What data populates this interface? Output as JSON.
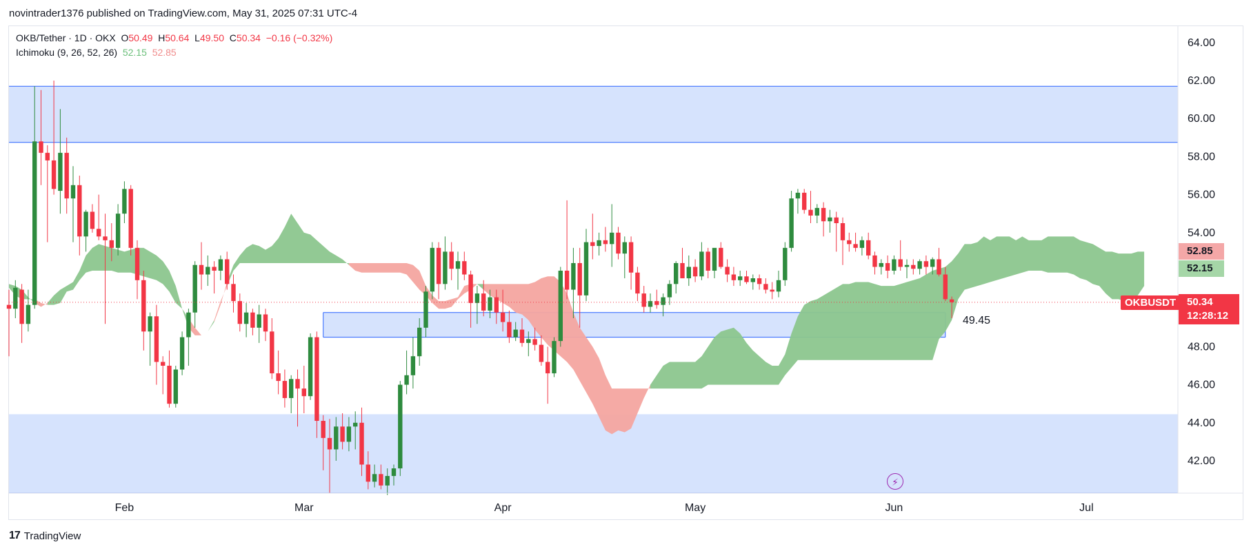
{
  "publisher_line": "novintrader1376 published on TradingView.com, May 31, 2025 07:31 UTC-4",
  "legend": {
    "symbol": "OKB/Tether · 1D · OKX",
    "open_label": "O",
    "open": "50.49",
    "high_label": "H",
    "high": "50.64",
    "low_label": "L",
    "low": "49.50",
    "close_label": "C",
    "close": "50.34",
    "change": "−0.16 (−0.32%)",
    "indicator": "Ichimoku (9, 26, 52, 26)",
    "ind_val_a": "52.15",
    "ind_val_b": "52.85"
  },
  "badges": {
    "symbol": "OKBUSDT",
    "last_price": "50.34",
    "countdown": "12:28:12",
    "senkou_b": "52.85",
    "senkou_a": "52.15"
  },
  "level_label": "49.45",
  "footer": {
    "logo_mark": "17",
    "brand": "TradingView"
  },
  "colors": {
    "up": "#2e8b3e",
    "down": "#f23645",
    "zone_fill": "#d2e0fd",
    "zone_line": "#2962ff",
    "cloud_bull": "#8cc68e",
    "cloud_bear": "#f4a5a0"
  },
  "chart_data": {
    "type": "candlestick",
    "ylim": [
      40.3,
      65.0
    ],
    "y_ticks": [
      "64.00",
      "62.00",
      "60.00",
      "58.00",
      "56.00",
      "54.00",
      "52.00",
      "50.00",
      "48.00",
      "46.00",
      "44.00",
      "42.00"
    ],
    "x_ticks": [
      {
        "label": "Feb",
        "day": 18
      },
      {
        "label": "Mar",
        "day": 46
      },
      {
        "label": "Apr",
        "day": 77
      },
      {
        "label": "May",
        "day": 107
      },
      {
        "label": "Jun",
        "day": 138
      },
      {
        "label": "Jul",
        "day": 168
      }
    ],
    "zones": [
      {
        "name": "upper-supply-zone",
        "y1": 58.75,
        "y2": 61.7,
        "x_start": 0,
        "x_end": null
      },
      {
        "name": "lower-demand-zone",
        "y1": 40.3,
        "y2": 44.45,
        "x_start": 0,
        "x_end": null
      },
      {
        "name": "mid-level-zone",
        "y1": 48.5,
        "y2": 49.8,
        "x_start": 49,
        "x_end": 146
      }
    ],
    "last_price_line": 50.34,
    "candles": [
      [
        50.2,
        51.0,
        47.5,
        50.0
      ],
      [
        50.0,
        51.5,
        49.5,
        51.1
      ],
      [
        51.0,
        51.3,
        48.2,
        49.2
      ],
      [
        49.2,
        51.0,
        48.8,
        50.2
      ],
      [
        50.2,
        61.7,
        50.0,
        58.8
      ],
      [
        58.8,
        61.5,
        56.5,
        58.2
      ],
      [
        58.2,
        58.6,
        53.5,
        57.8
      ],
      [
        57.8,
        62.0,
        56.0,
        56.3
      ],
      [
        56.2,
        60.5,
        55.0,
        58.2
      ],
      [
        58.2,
        59.0,
        55.0,
        55.8
      ],
      [
        55.8,
        57.5,
        53.5,
        56.5
      ],
      [
        56.5,
        57.0,
        52.8,
        53.8
      ],
      [
        53.8,
        55.2,
        53.0,
        55.1
      ],
      [
        55.1,
        55.5,
        54.0,
        54.2
      ],
      [
        54.2,
        56.0,
        53.6,
        53.8
      ],
      [
        53.8,
        55.0,
        49.2,
        53.6
      ],
      [
        53.6,
        54.5,
        52.5,
        53.2
      ],
      [
        53.2,
        55.5,
        52.8,
        55.0
      ],
      [
        55.0,
        56.7,
        54.5,
        56.3
      ],
      [
        56.3,
        56.5,
        52.8,
        53.2
      ],
      [
        53.2,
        53.6,
        50.5,
        51.5
      ],
      [
        51.5,
        52.0,
        47.8,
        48.8
      ],
      [
        48.8,
        49.8,
        47.0,
        49.6
      ],
      [
        49.6,
        50.2,
        46.0,
        47.2
      ],
      [
        47.2,
        47.5,
        45.5,
        47.0
      ],
      [
        47.0,
        47.8,
        44.8,
        45.0
      ],
      [
        45.0,
        47.0,
        44.8,
        46.8
      ],
      [
        46.8,
        48.8,
        46.5,
        48.5
      ],
      [
        48.5,
        50.0,
        47.0,
        49.8
      ],
      [
        49.8,
        52.5,
        49.0,
        52.3
      ],
      [
        52.3,
        53.5,
        51.0,
        51.8
      ],
      [
        51.8,
        52.8,
        51.2,
        52.2
      ],
      [
        52.2,
        52.5,
        50.8,
        52.0
      ],
      [
        52.0,
        52.8,
        51.5,
        52.6
      ],
      [
        52.6,
        53.0,
        51.0,
        51.3
      ],
      [
        51.3,
        51.8,
        49.8,
        50.4
      ],
      [
        50.4,
        50.8,
        48.8,
        49.2
      ],
      [
        49.2,
        50.3,
        48.5,
        49.8
      ],
      [
        49.8,
        50.0,
        48.6,
        49.0
      ],
      [
        49.0,
        50.2,
        48.2,
        49.7
      ],
      [
        49.7,
        50.0,
        48.3,
        48.8
      ],
      [
        48.8,
        49.5,
        46.3,
        46.6
      ],
      [
        46.6,
        47.8,
        45.5,
        46.2
      ],
      [
        46.2,
        46.8,
        44.8,
        45.3
      ],
      [
        45.3,
        46.5,
        44.5,
        46.3
      ],
      [
        46.3,
        46.8,
        43.8,
        45.8
      ],
      [
        45.8,
        47.0,
        44.5,
        45.4
      ],
      [
        45.4,
        48.7,
        45.2,
        48.5
      ],
      [
        48.5,
        48.8,
        43.2,
        44.1
      ],
      [
        44.1,
        44.4,
        41.5,
        43.2
      ],
      [
        43.2,
        44.2,
        40.3,
        42.6
      ],
      [
        42.6,
        44.3,
        42.0,
        43.8
      ],
      [
        43.8,
        44.5,
        42.6,
        43.0
      ],
      [
        43.0,
        44.3,
        42.5,
        43.8
      ],
      [
        43.8,
        44.6,
        42.6,
        44.0
      ],
      [
        44.0,
        44.8,
        41.2,
        41.8
      ],
      [
        41.8,
        42.5,
        40.5,
        40.9
      ],
      [
        40.9,
        41.8,
        40.6,
        41.3
      ],
      [
        41.3,
        41.8,
        40.5,
        40.7
      ],
      [
        40.7,
        41.6,
        40.2,
        41.2
      ],
      [
        41.2,
        41.8,
        40.7,
        41.6
      ],
      [
        41.6,
        46.2,
        41.2,
        46.0
      ],
      [
        46.0,
        47.8,
        45.5,
        46.5
      ],
      [
        46.5,
        48.5,
        45.8,
        47.5
      ],
      [
        47.5,
        49.5,
        47.0,
        49.0
      ],
      [
        49.0,
        51.2,
        48.5,
        50.9
      ],
      [
        50.9,
        53.5,
        50.5,
        53.2
      ],
      [
        53.2,
        53.5,
        50.5,
        51.3
      ],
      [
        51.3,
        53.8,
        51.0,
        53.0
      ],
      [
        53.0,
        53.5,
        51.5,
        52.1
      ],
      [
        52.1,
        53.0,
        51.0,
        52.5
      ],
      [
        52.5,
        53.0,
        51.5,
        51.8
      ],
      [
        51.8,
        52.0,
        49.0,
        50.3
      ],
      [
        50.3,
        51.2,
        49.2,
        50.8
      ],
      [
        50.8,
        51.5,
        49.6,
        49.9
      ],
      [
        49.9,
        51.0,
        49.5,
        50.6
      ],
      [
        50.6,
        51.0,
        49.2,
        49.8
      ],
      [
        49.8,
        51.0,
        48.8,
        49.3
      ],
      [
        49.3,
        49.9,
        48.2,
        48.5
      ],
      [
        48.5,
        49.3,
        48.3,
        48.9
      ],
      [
        48.9,
        49.5,
        48.0,
        48.2
      ],
      [
        48.2,
        48.8,
        47.5,
        48.4
      ],
      [
        48.4,
        49.0,
        47.8,
        48.1
      ],
      [
        48.1,
        48.6,
        47.0,
        47.2
      ],
      [
        47.2,
        48.0,
        45.0,
        46.6
      ],
      [
        46.6,
        48.5,
        46.4,
        48.3
      ],
      [
        48.3,
        52.2,
        48.0,
        52.0
      ],
      [
        52.0,
        55.7,
        50.5,
        51.0
      ],
      [
        51.0,
        53.2,
        49.5,
        52.4
      ],
      [
        52.4,
        53.2,
        49.0,
        50.7
      ],
      [
        50.7,
        54.2,
        50.4,
        53.5
      ],
      [
        53.5,
        55.0,
        52.6,
        53.3
      ],
      [
        53.3,
        54.0,
        52.8,
        53.6
      ],
      [
        53.6,
        54.3,
        53.0,
        53.4
      ],
      [
        53.4,
        55.5,
        52.2,
        54.0
      ],
      [
        54.0,
        54.3,
        52.6,
        52.9
      ],
      [
        52.9,
        53.8,
        51.6,
        53.5
      ],
      [
        53.5,
        53.8,
        51.0,
        51.9
      ],
      [
        51.9,
        52.2,
        50.4,
        50.8
      ],
      [
        50.8,
        51.2,
        49.8,
        50.1
      ],
      [
        50.1,
        50.8,
        49.8,
        50.4
      ],
      [
        50.4,
        51.0,
        50.0,
        50.2
      ],
      [
        50.2,
        50.8,
        49.6,
        50.6
      ],
      [
        50.6,
        51.5,
        50.2,
        51.3
      ],
      [
        51.3,
        52.5,
        50.8,
        52.4
      ],
      [
        52.4,
        53.2,
        51.8,
        51.6
      ],
      [
        51.6,
        52.8,
        51.2,
        52.2
      ],
      [
        52.2,
        52.6,
        51.4,
        51.7
      ],
      [
        51.7,
        53.5,
        51.5,
        53.0
      ],
      [
        53.0,
        53.2,
        51.6,
        52.0
      ],
      [
        52.0,
        53.0,
        51.6,
        53.2
      ],
      [
        53.2,
        53.5,
        52.1,
        52.2
      ],
      [
        52.2,
        52.6,
        51.4,
        51.8
      ],
      [
        51.8,
        52.2,
        51.2,
        51.5
      ],
      [
        51.5,
        52.0,
        51.2,
        51.7
      ],
      [
        51.7,
        52.0,
        51.3,
        51.4
      ],
      [
        51.4,
        51.8,
        51.0,
        51.6
      ],
      [
        51.6,
        51.8,
        51.0,
        51.3
      ],
      [
        51.3,
        51.6,
        50.8,
        51.0
      ],
      [
        51.0,
        51.4,
        50.5,
        50.9
      ],
      [
        50.9,
        52.0,
        50.6,
        51.5
      ],
      [
        51.5,
        53.5,
        51.2,
        53.2
      ],
      [
        53.2,
        56.2,
        53.0,
        55.8
      ],
      [
        55.8,
        56.3,
        55.0,
        56.1
      ],
      [
        56.1,
        56.3,
        55.0,
        55.2
      ],
      [
        55.2,
        56.2,
        54.5,
        54.9
      ],
      [
        54.9,
        55.5,
        54.5,
        55.3
      ],
      [
        55.3,
        55.6,
        53.8,
        54.6
      ],
      [
        54.6,
        55.2,
        54.0,
        54.8
      ],
      [
        54.8,
        55.1,
        53.0,
        54.5
      ],
      [
        54.5,
        54.8,
        52.3,
        53.6
      ],
      [
        53.6,
        54.0,
        53.0,
        53.4
      ],
      [
        53.4,
        54.0,
        53.0,
        53.2
      ],
      [
        53.2,
        53.8,
        52.8,
        53.6
      ],
      [
        53.6,
        54.0,
        52.6,
        52.8
      ],
      [
        52.8,
        53.0,
        51.8,
        52.2
      ],
      [
        52.2,
        52.6,
        51.8,
        52.4
      ],
      [
        52.4,
        52.8,
        51.6,
        52.0
      ],
      [
        52.0,
        52.8,
        51.8,
        52.6
      ],
      [
        52.6,
        53.6,
        52.0,
        52.2
      ],
      [
        52.2,
        52.6,
        51.6,
        52.3
      ],
      [
        52.3,
        52.6,
        51.8,
        52.1
      ],
      [
        52.1,
        52.6,
        51.8,
        52.5
      ],
      [
        52.5,
        52.8,
        51.8,
        52.2
      ],
      [
        52.2,
        52.7,
        51.8,
        52.6
      ],
      [
        52.6,
        53.2,
        51.7,
        51.8
      ],
      [
        51.8,
        52.2,
        50.4,
        50.5
      ],
      [
        50.49,
        50.64,
        49.5,
        50.34
      ]
    ],
    "cloud_a": [
      51.3,
      51.2,
      51.0,
      50.6,
      50.3,
      50.1,
      50.3,
      50.7,
      51.0,
      51.2,
      51.4,
      52.0,
      52.8,
      53.2,
      53.4,
      53.3,
      53.2,
      53.1,
      53.0,
      53.1,
      53.2,
      53.2,
      53.0,
      52.8,
      52.5,
      52.0,
      51.2,
      50.0,
      49.0,
      48.6,
      48.6,
      48.8,
      49.3,
      50.2,
      51.4,
      52.3,
      52.8,
      53.2,
      53.4,
      53.3,
      53.1,
      53.3,
      53.7,
      54.3,
      55.0,
      54.5,
      54.0,
      53.9,
      53.6,
      53.3,
      53.0,
      52.8,
      52.6,
      52.3,
      52.0,
      51.9,
      51.9,
      51.9,
      51.9,
      51.9,
      51.9,
      51.9,
      51.8,
      51.4,
      51.0,
      50.7,
      50.3,
      50.0,
      50.0,
      50.1,
      50.5,
      50.8,
      51.0,
      51.3,
      51.0,
      50.7,
      50.5,
      50.3,
      50.1,
      49.8,
      49.7,
      49.4,
      48.9,
      48.5,
      48.1,
      47.8,
      47.5,
      47.2,
      46.8,
      46.2,
      45.6,
      45.0,
      44.3,
      43.6,
      43.4,
      43.6,
      43.5,
      43.7,
      44.5,
      45.3,
      46.0,
      46.5,
      47.0,
      47.2,
      47.2,
      47.2,
      47.2,
      47.2,
      47.5,
      48.0,
      48.5,
      48.8,
      48.9,
      49.0,
      48.7,
      48.2,
      47.8,
      47.5,
      47.2,
      47.0,
      47.0,
      47.6,
      48.7,
      49.6,
      50.2,
      50.4,
      50.5,
      50.7,
      50.9,
      51.1,
      51.3,
      51.3,
      51.4,
      51.4,
      51.4,
      51.3,
      51.2,
      51.2,
      51.2,
      51.3,
      51.4,
      51.5,
      51.6,
      51.8,
      52.0,
      52.1,
      52.2,
      52.5,
      52.9,
      53.4,
      53.4,
      53.5,
      53.8,
      53.6,
      53.8,
      53.8,
      53.8,
      53.6,
      53.8,
      53.6,
      53.6,
      53.6,
      53.8,
      53.8,
      53.8,
      53.8,
      53.8,
      53.6,
      53.5,
      53.4,
      53.2,
      53.0,
      53.0,
      52.9,
      52.9,
      52.9,
      53.0,
      53.0
    ],
    "cloud_b": [
      51.1,
      50.7,
      50.5,
      50.5,
      50.5,
      50.3,
      50.2,
      50.2,
      50.3,
      50.9,
      51.0,
      51.5,
      51.9,
      52.0,
      52.0,
      52.0,
      52.0,
      51.9,
      51.9,
      51.9,
      51.8,
      51.7,
      51.6,
      51.5,
      51.3,
      50.9,
      50.3,
      50.0,
      49.5,
      49.0,
      48.6,
      48.8,
      49.4,
      50.4,
      51.2,
      52.0,
      52.4,
      52.4,
      52.4,
      52.4,
      52.4,
      52.4,
      52.4,
      52.4,
      52.4,
      52.4,
      52.4,
      52.4,
      52.4,
      52.4,
      52.4,
      52.4,
      52.4,
      52.4,
      52.4,
      52.4,
      52.4,
      52.4,
      52.4,
      52.4,
      52.4,
      52.4,
      52.4,
      52.3,
      52.0,
      51.2,
      50.7,
      50.4,
      50.4,
      50.5,
      50.6,
      51.2,
      51.3,
      51.3,
      51.3,
      51.3,
      51.3,
      51.3,
      51.3,
      51.3,
      51.3,
      51.3,
      51.4,
      51.6,
      51.7,
      51.7,
      51.4,
      50.8,
      49.8,
      49.0,
      48.5,
      48.0,
      47.4,
      46.5,
      45.8,
      45.8,
      45.8,
      45.8,
      45.8,
      45.8,
      45.8,
      45.8,
      45.8,
      45.8,
      45.8,
      45.8,
      45.8,
      45.8,
      45.8,
      46.0,
      46.0,
      46.0,
      46.0,
      46.0,
      46.0,
      46.0,
      46.0,
      46.0,
      46.0,
      46.0,
      46.0,
      46.5,
      46.9,
      47.3,
      47.3,
      47.3,
      47.3,
      47.3,
      47.3,
      47.3,
      47.3,
      47.3,
      47.3,
      47.3,
      47.3,
      47.3,
      47.3,
      47.3,
      47.3,
      47.3,
      47.3,
      47.3,
      47.3,
      47.3,
      47.3,
      48.4,
      48.8,
      49.4,
      50.5,
      51.0,
      51.1,
      51.2,
      51.3,
      51.4,
      51.5,
      51.6,
      51.7,
      51.8,
      51.9,
      52.0,
      52.0,
      52.0,
      51.9,
      51.9,
      51.9,
      51.9,
      51.8,
      51.6,
      51.5,
      51.3,
      51.2,
      50.8,
      50.5,
      50.5,
      50.4,
      50.5,
      50.7,
      51.2,
      51.7,
      52.1,
      52.4,
      52.6,
      53.0,
      53.4,
      52.8
    ]
  }
}
